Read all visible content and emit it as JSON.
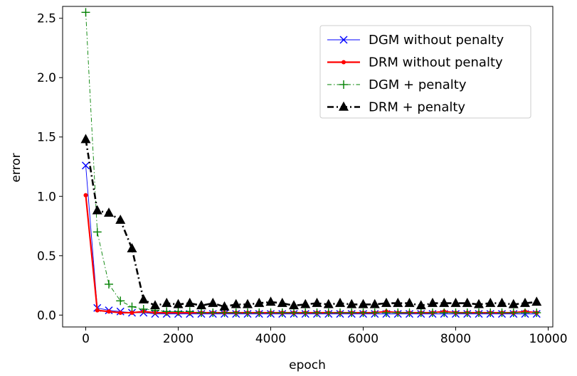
{
  "chart_data": {
    "type": "line",
    "title": "",
    "xlabel": "epoch",
    "ylabel": "error",
    "xlim": [
      -500,
      10100
    ],
    "ylim": [
      -0.1,
      2.6
    ],
    "xticks": [
      0,
      2000,
      4000,
      6000,
      8000,
      10000
    ],
    "xtick_labels": [
      "0",
      "2000",
      "4000",
      "6000",
      "8000",
      "10000"
    ],
    "yticks": [
      0.0,
      0.5,
      1.0,
      1.5,
      2.0,
      2.5
    ],
    "ytick_labels": [
      "0.0",
      "0.5",
      "1.0",
      "1.5",
      "2.0",
      "2.5"
    ],
    "grid": false,
    "legend_position": "top-right",
    "x": [
      0,
      250,
      500,
      750,
      1000,
      1250,
      1500,
      1750,
      2000,
      2250,
      2500,
      2750,
      3000,
      3250,
      3500,
      3750,
      4000,
      4250,
      4500,
      4750,
      5000,
      5250,
      5500,
      5750,
      6000,
      6250,
      6500,
      6750,
      7000,
      7250,
      7500,
      7750,
      8000,
      8250,
      8500,
      8750,
      9000,
      9250,
      9500,
      9750
    ],
    "series": [
      {
        "name": "DGM without penalty",
        "color": "#0000ff",
        "marker": "x",
        "linestyle": "solid",
        "values": [
          1.26,
          0.06,
          0.04,
          0.03,
          0.02,
          0.02,
          0.01,
          0.01,
          0.01,
          0.01,
          0.01,
          0.01,
          0.01,
          0.01,
          0.01,
          0.01,
          0.01,
          0.01,
          0.01,
          0.01,
          0.01,
          0.01,
          0.01,
          0.01,
          0.01,
          0.01,
          0.01,
          0.01,
          0.01,
          0.01,
          0.01,
          0.01,
          0.01,
          0.01,
          0.01,
          0.01,
          0.01,
          0.01,
          0.01,
          0.01
        ]
      },
      {
        "name": "DRM without penalty",
        "color": "#ff0000",
        "marker": "o",
        "linestyle": "solid",
        "values": [
          1.01,
          0.04,
          0.03,
          0.02,
          0.02,
          0.03,
          0.02,
          0.02,
          0.02,
          0.02,
          0.02,
          0.02,
          0.02,
          0.02,
          0.02,
          0.02,
          0.02,
          0.02,
          0.02,
          0.02,
          0.02,
          0.02,
          0.02,
          0.02,
          0.02,
          0.02,
          0.03,
          0.02,
          0.02,
          0.02,
          0.02,
          0.03,
          0.02,
          0.02,
          0.02,
          0.02,
          0.02,
          0.02,
          0.03,
          0.02
        ]
      },
      {
        "name": "DGM + penalty",
        "color": "#008000",
        "marker": "+",
        "linestyle": "dashdot",
        "values": [
          2.55,
          0.7,
          0.26,
          0.12,
          0.07,
          0.05,
          0.04,
          0.03,
          0.03,
          0.03,
          0.02,
          0.02,
          0.02,
          0.02,
          0.02,
          0.02,
          0.02,
          0.02,
          0.02,
          0.02,
          0.02,
          0.02,
          0.02,
          0.02,
          0.02,
          0.02,
          0.02,
          0.02,
          0.02,
          0.02,
          0.02,
          0.02,
          0.02,
          0.02,
          0.02,
          0.02,
          0.02,
          0.02,
          0.02,
          0.02
        ]
      },
      {
        "name": "DRM + penalty",
        "color": "#000000",
        "marker": "^",
        "linestyle": "dashdot",
        "values": [
          1.48,
          0.88,
          0.86,
          0.8,
          0.56,
          0.13,
          0.08,
          0.1,
          0.09,
          0.1,
          0.08,
          0.1,
          0.07,
          0.09,
          0.09,
          0.1,
          0.11,
          0.1,
          0.08,
          0.09,
          0.1,
          0.09,
          0.1,
          0.09,
          0.09,
          0.09,
          0.1,
          0.1,
          0.1,
          0.08,
          0.1,
          0.1,
          0.1,
          0.1,
          0.09,
          0.1,
          0.1,
          0.09,
          0.1,
          0.11
        ]
      }
    ]
  }
}
